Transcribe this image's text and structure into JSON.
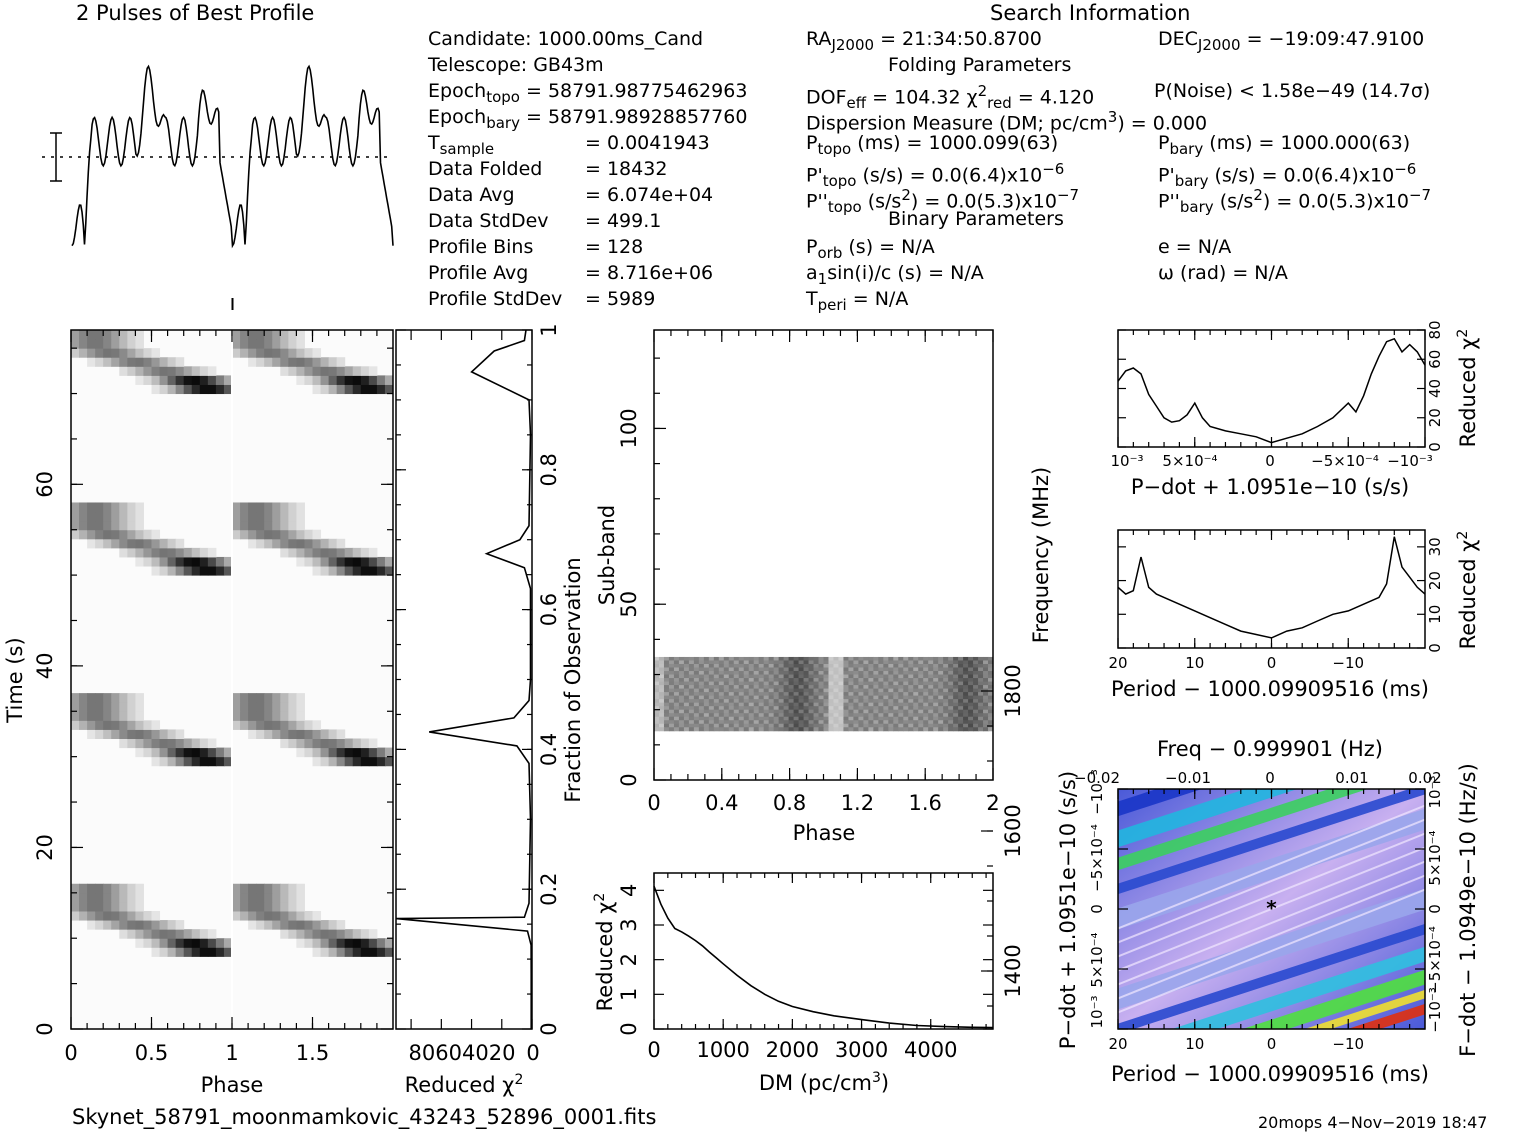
{
  "titles": {
    "profile": "2 Pulses of Best Profile",
    "search": "Search Information",
    "folding": "Folding Parameters",
    "binary": "Binary Parameters"
  },
  "info_left": [
    {
      "label": "Candidate:",
      "value": "1000.00ms_Cand"
    },
    {
      "label": "Telescope:",
      "value": "GB43m"
    },
    {
      "label": "Epoch",
      "sub": "topo",
      "value": "= 58791.98775462963"
    },
    {
      "label": "Epoch",
      "sub": "bary",
      "value": "= 58791.98928857760"
    },
    {
      "label": "T",
      "sub": "sample",
      "value": "=    0.0041943"
    },
    {
      "label": "Data Folded",
      "value": "=    18432"
    },
    {
      "label": "Data Avg",
      "value": "=    6.074e+04"
    },
    {
      "label": "Data StdDev",
      "value": "=    499.1"
    },
    {
      "label": "Profile Bins",
      "value": "=    128"
    },
    {
      "label": "Profile Avg",
      "value": "=    8.716e+06"
    },
    {
      "label": "Profile StdDev",
      "value": "=    5989"
    }
  ],
  "info_mid": {
    "ra": "RA",
    "ra_sub": "J2000",
    "ra_value": "= 21:34:50.8700",
    "dec": "DEC",
    "dec_sub": "J2000",
    "dec_value": "= −19:09:47.9100",
    "dof": "DOF",
    "dof_sub": "eff",
    "dof_value": "= 104.32",
    "chi": "χ",
    "chi_sup": "2",
    "chi_sub": "red",
    "chi_value": "= 4.120",
    "pnoise": "P(Noise) < 1.58e−49   (14.7σ)",
    "dm": "Dispersion Measure (DM; pc/cm",
    "dm_sup": "3",
    "dm_value": ") = 0.000",
    "ptopo": "P",
    "ptopo_sub": "topo",
    "ptopo_value": "(ms) =  1000.099(63)",
    "pbary": "P",
    "pbary_sub": "bary",
    "pbary_value": "(ms) =  1000.000(63)",
    "pdtopo": "P'",
    "pdtopo_sub": "topo",
    "pdtopo_value": "(s/s) = 0.0(6.4)x10",
    "pdtopo_sup": "−6",
    "pdbary": "P'",
    "pdbary_sub": "bary",
    "pdbary_value": "(s/s) = 0.0(6.4)x10",
    "pdbary_sup": "−6",
    "pddtopo": "P''",
    "pddtopo_sub": "topo",
    "pddtopo_value": "(s/s",
    "pddtopo_sup2": "2",
    "pddtopo_value2": ") = 0.0(5.3)x10",
    "pddtopo_sup": "−7",
    "pddbary": "P''",
    "pddbary_sub": "bary",
    "pddbary_value": "(s/s",
    "pddbary_sup2": "2",
    "pddbary_value2": ") = 0.0(5.3)x10",
    "pddbary_sup": "−7",
    "porb": "P",
    "porb_sub": "orb",
    "porb_value": "(s) = N/A",
    "ecc": "e = N/A",
    "asini": "a",
    "asini_sub": "1",
    "asini_value": "sin(i)/c (s) = N/A",
    "omega": "ω (rad) = N/A",
    "tperi": "T",
    "tperi_sub": "peri",
    "tperi_value": "= N/A"
  },
  "footer": {
    "filename": "Skynet_58791_moonmamkovic_43243_52896_0001.fits",
    "stamp": "20mops   4−Nov−2019 18:47"
  },
  "chart_data": [
    {
      "id": "profile",
      "type": "line",
      "title": "2 Pulses of Best Profile",
      "x_range": [
        0,
        2
      ],
      "period_mark": 1,
      "note": "two identical pulses plotted; dotted line at mean, error bar on left"
    },
    {
      "id": "time_phase",
      "type": "heatmap",
      "xlabel": "Phase",
      "ylabel": "Time (s)",
      "x_ticks": [
        "0",
        "0.5",
        "1",
        "1.5"
      ],
      "y_ticks": [
        "0",
        "20",
        "40",
        "60"
      ],
      "x_range": [
        0,
        2
      ],
      "y_range": [
        0,
        77
      ],
      "bursts_time_s": [
        9,
        13,
        30,
        34,
        51,
        55,
        71,
        75
      ]
    },
    {
      "id": "chi_vs_time",
      "type": "line",
      "xlabel": "Reduced χ",
      "xlabel_sup": "2",
      "ylabel": "Fraction of Observation",
      "x_ticks": [
        "80604020",
        "0"
      ],
      "y_ticks": [
        "0",
        "0.2",
        "0.4",
        "0.6",
        "0.8",
        "1"
      ],
      "x_range": [
        0,
        90
      ],
      "y_range": [
        0,
        1
      ],
      "points": [
        [
          0.5,
          0
        ],
        [
          0.5,
          0.08
        ],
        [
          0.6,
          0.12
        ],
        [
          3,
          0.14
        ],
        [
          92,
          0.158
        ],
        [
          5,
          0.16
        ],
        [
          2,
          0.18
        ],
        [
          1,
          0.3
        ],
        [
          2,
          0.38
        ],
        [
          10,
          0.405
        ],
        [
          68,
          0.425
        ],
        [
          12,
          0.445
        ],
        [
          2,
          0.47
        ],
        [
          1,
          0.5
        ],
        [
          1,
          0.63
        ],
        [
          5,
          0.66
        ],
        [
          30,
          0.68
        ],
        [
          8,
          0.7
        ],
        [
          2,
          0.72
        ],
        [
          1,
          0.85
        ],
        [
          2,
          0.9
        ],
        [
          40,
          0.94
        ],
        [
          25,
          0.97
        ],
        [
          5,
          0.985
        ],
        [
          4,
          1
        ]
      ]
    },
    {
      "id": "subband_phase",
      "type": "heatmap",
      "xlabel": "Phase",
      "ylabel": "Sub-band",
      "y2label": "Frequency (MHz)",
      "x_ticks": [
        "0",
        "0.4",
        "0.8",
        "1.2",
        "1.6",
        "2"
      ],
      "y_ticks": [
        "0",
        "50",
        "100"
      ],
      "y2_ticks": [
        "1400",
        "1600",
        "1800"
      ],
      "x_range": [
        0,
        2
      ],
      "y_range": [
        0,
        128
      ],
      "signal_subbands": [
        14,
        35
      ]
    },
    {
      "id": "chi_vs_dm",
      "type": "line",
      "xlabel": "DM (pc/cm",
      "xlabel_sup": "3",
      "xlabel_end": ")",
      "ylabel": "Reduced χ",
      "ylabel_sup": "2",
      "x_ticks": [
        "0",
        "1000",
        "2000",
        "3000",
        "4000"
      ],
      "y_ticks": [
        "0",
        "1",
        "2",
        "3",
        "4"
      ],
      "x_range": [
        0,
        4900
      ],
      "y_range": [
        0,
        4.5
      ],
      "points": [
        [
          0,
          4.12
        ],
        [
          100,
          3.6
        ],
        [
          200,
          3.2
        ],
        [
          300,
          2.9
        ],
        [
          400,
          2.8
        ],
        [
          500,
          2.68
        ],
        [
          600,
          2.55
        ],
        [
          700,
          2.4
        ],
        [
          800,
          2.22
        ],
        [
          900,
          2.05
        ],
        [
          1000,
          1.88
        ],
        [
          1200,
          1.55
        ],
        [
          1400,
          1.25
        ],
        [
          1600,
          1.0
        ],
        [
          1800,
          0.8
        ],
        [
          2000,
          0.65
        ],
        [
          2300,
          0.5
        ],
        [
          2600,
          0.38
        ],
        [
          3000,
          0.27
        ],
        [
          3400,
          0.17
        ],
        [
          3800,
          0.1
        ],
        [
          4200,
          0.07
        ],
        [
          4600,
          0.05
        ],
        [
          4900,
          0.04
        ]
      ]
    },
    {
      "id": "chi_vs_pdot",
      "type": "line",
      "xlabel": "P−dot + 1.0951e−10 (s/s)",
      "ylabel": "Reduced χ",
      "ylabel_sup": "2",
      "x_ticks": [
        "10⁻³",
        "5×10⁻⁴",
        "0",
        "−5×10⁻⁴",
        "−10⁻³"
      ],
      "y_ticks": [
        "0",
        "20",
        "40",
        "60",
        "80"
      ],
      "x_range": [
        0.001,
        -0.001
      ],
      "y_range": [
        0,
        80
      ],
      "points": [
        [
          0.001,
          45
        ],
        [
          0.00095,
          52
        ],
        [
          0.0009,
          54
        ],
        [
          0.00085,
          50
        ],
        [
          0.0008,
          36
        ],
        [
          0.00075,
          28
        ],
        [
          0.0007,
          20
        ],
        [
          0.00065,
          17
        ],
        [
          0.0006,
          18
        ],
        [
          0.00055,
          22
        ],
        [
          0.0005,
          30
        ],
        [
          0.00045,
          20
        ],
        [
          0.0004,
          14
        ],
        [
          0.0003,
          11
        ],
        [
          0.0002,
          9
        ],
        [
          0.0001,
          7
        ],
        [
          0,
          3
        ],
        [
          -0.0001,
          6
        ],
        [
          -0.0002,
          9
        ],
        [
          -0.0003,
          14
        ],
        [
          -0.0004,
          20
        ],
        [
          -0.0005,
          30
        ],
        [
          -0.00055,
          24
        ],
        [
          -0.0006,
          35
        ],
        [
          -0.00065,
          50
        ],
        [
          -0.0007,
          62
        ],
        [
          -0.00075,
          72
        ],
        [
          -0.0008,
          74
        ],
        [
          -0.00085,
          65
        ],
        [
          -0.0009,
          70
        ],
        [
          -0.00095,
          65
        ],
        [
          -0.001,
          56
        ]
      ]
    },
    {
      "id": "chi_vs_period",
      "type": "line",
      "xlabel": "Period − 1000.09909516 (ms)",
      "ylabel": "Reduced χ",
      "ylabel_sup": "2",
      "x_ticks": [
        "20",
        "10",
        "0",
        "−10"
      ],
      "y_ticks": [
        "0",
        "10",
        "20",
        "30"
      ],
      "x_range": [
        20,
        -20
      ],
      "y_range": [
        0,
        35
      ],
      "points": [
        [
          20,
          18
        ],
        [
          19,
          16
        ],
        [
          18,
          17
        ],
        [
          17,
          27
        ],
        [
          16,
          18
        ],
        [
          15,
          16
        ],
        [
          14,
          15
        ],
        [
          12,
          13
        ],
        [
          10,
          11
        ],
        [
          8,
          9
        ],
        [
          6,
          7
        ],
        [
          4,
          5
        ],
        [
          2,
          4
        ],
        [
          0,
          3
        ],
        [
          -2,
          5
        ],
        [
          -4,
          6
        ],
        [
          -6,
          8
        ],
        [
          -8,
          10
        ],
        [
          -10,
          11
        ],
        [
          -12,
          13
        ],
        [
          -14,
          15
        ],
        [
          -15,
          19
        ],
        [
          -16,
          33
        ],
        [
          -17,
          24
        ],
        [
          -18,
          21
        ],
        [
          -19,
          18
        ],
        [
          -20,
          16
        ]
      ]
    },
    {
      "id": "period_pdot_plane",
      "type": "heatmap",
      "xlabel": "Period − 1000.09909516 (ms)",
      "ylabel": "P−dot + 1.0951e−10 (s/s)",
      "x2label": "Freq − 0.999901 (Hz)",
      "y2label": "F−dot − 1.0949e−10 (Hz/s)",
      "x_ticks": [
        "20",
        "10",
        "0",
        "−10"
      ],
      "x2_ticks": [
        "−0.02",
        "−0.01",
        "0",
        "0.01",
        "0.02"
      ],
      "y_ticks": [
        "10⁻³",
        "5×10⁻⁴",
        "0",
        "−5×10⁻⁴",
        "−10⁻³"
      ],
      "y2_ticks": [
        "−10⁻³",
        "−5×10⁻⁴",
        "0",
        "5×10⁻⁴",
        "10⁻³"
      ],
      "best": [
        0,
        0
      ]
    }
  ]
}
